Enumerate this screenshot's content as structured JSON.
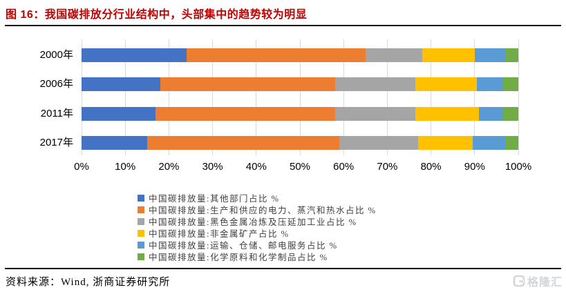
{
  "title": {
    "text": "图 16：我国碳排放分行业结构中，头部集中的趋势较为明显"
  },
  "chart_data": {
    "type": "bar",
    "orientation": "horizontal-stacked",
    "title": "图 16：我国碳排放分行业结构中，头部集中的趋势较为明显",
    "categories": [
      "2000年",
      "2006年",
      "2011年",
      "2017年"
    ],
    "series": [
      {
        "name": "中国碳排放量:其他部门占比 %",
        "color": "#4472C4",
        "values": [
          24,
          18,
          17,
          15
        ]
      },
      {
        "name": "中国碳排放量:生产和供应的电力、蒸汽和热水占比 %",
        "color": "#ED7D31",
        "values": [
          41,
          40,
          41,
          44
        ]
      },
      {
        "name": "中国碳排放量:黑色金属冶炼及压延加工业占比 %",
        "color": "#A5A5A5",
        "values": [
          13,
          18.5,
          18.5,
          18
        ]
      },
      {
        "name": "中国碳排放量:非金属矿产占比 %",
        "color": "#FFC000",
        "values": [
          12,
          14,
          14.5,
          12.5
        ]
      },
      {
        "name": "中国碳排放量:运输、仓储、邮电服务占比 %",
        "color": "#5B9BD5",
        "values": [
          7,
          6,
          5.5,
          7.5
        ]
      },
      {
        "name": "中国碳排放量:化学原料和化学制品占比 %",
        "color": "#70AD47",
        "values": [
          3,
          3.5,
          3.5,
          3
        ]
      }
    ],
    "x_tick_labels": [
      "0%",
      "10%",
      "20%",
      "30%",
      "40%",
      "50%",
      "60%",
      "70%",
      "80%",
      "90%",
      "100%"
    ],
    "xlim": [
      0,
      100
    ],
    "grid": "vertical-on",
    "legend_position": "bottom"
  },
  "footer": {
    "source": "资料来源：Wind, 浙商证券研究所"
  },
  "logo": {
    "text": "格隆汇"
  },
  "colors": {
    "title_accent": "#C00000",
    "rule": "#000000",
    "gridline": "#D9D9D9",
    "logo_gray": "#d3d6d9"
  }
}
